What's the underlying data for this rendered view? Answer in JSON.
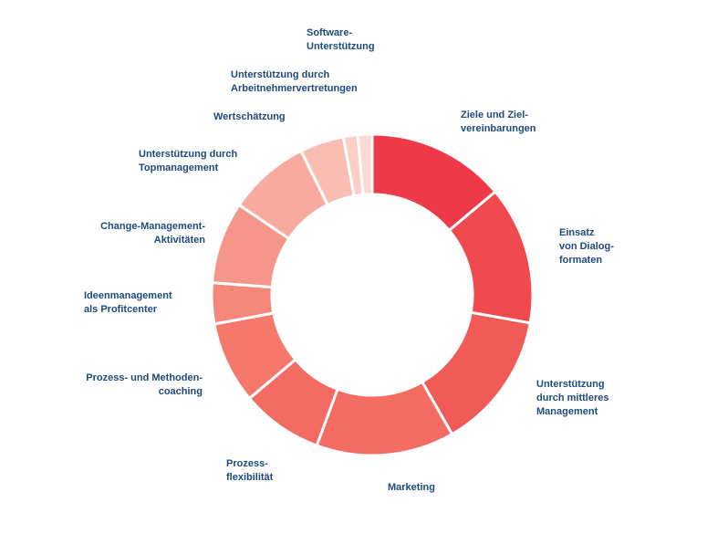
{
  "chart_data": {
    "type": "pie",
    "categories": [
      "Ziele und Ziel-\nvereinbarungen",
      "Einsatz\nvon Dialog-\nformaten",
      "Unterstützung\ndurch mittleres\nManagement",
      "Marketing",
      "Prozess-\nflexibilität",
      "Prozess- und Methoden-\ncoaching",
      "Ideenmanagement\nals Profitcenter",
      "Change-Management-\nAktivitäten",
      "Unterstützung durch\nTopmanagement",
      "Wertschätzung",
      "Unterstützung durch\nArbeitnehmervertretungen",
      "Software-\nUnterstützung"
    ],
    "values": [
      13.5,
      13.5,
      13.5,
      13.5,
      8.0,
      8.0,
      4.0,
      8.0,
      8.0,
      4.3,
      1.4,
      1.4
    ],
    "colors": [
      "#ee3a48",
      "#f04a4f",
      "#f15b57",
      "#f36b63",
      "#f36b63",
      "#f5786c",
      "#f5887b",
      "#f6968a",
      "#f8aa9f",
      "#fabdb1",
      "#fbcec6",
      "#fcd9d2"
    ]
  }
}
